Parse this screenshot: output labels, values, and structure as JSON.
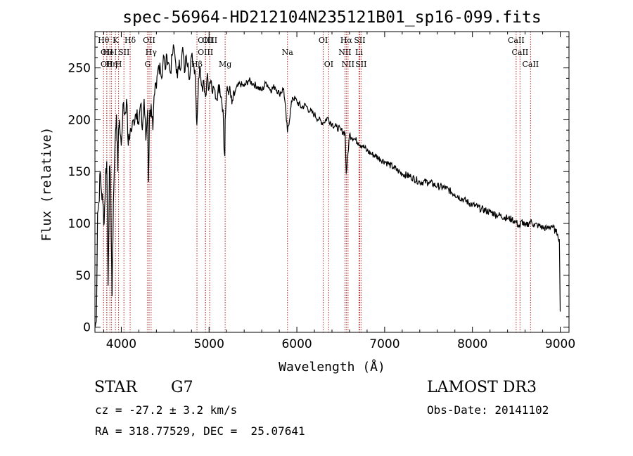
{
  "chart_data": {
    "type": "line",
    "title": "spec-56964-HD212104N235121B01_sp16-099.fits",
    "xlabel": "Wavelength (Å)",
    "ylabel": "Flux (relative)",
    "xlim": [
      3700,
      9100
    ],
    "ylim": [
      -5,
      285
    ],
    "xticks": [
      4000,
      5000,
      6000,
      7000,
      8000,
      9000
    ],
    "yticks": [
      0,
      50,
      100,
      150,
      200,
      250
    ],
    "series": [
      {
        "name": "spectrum",
        "x": [
          3700,
          3715,
          3730,
          3745,
          3760,
          3775,
          3790,
          3805,
          3820,
          3835,
          3850,
          3865,
          3880,
          3895,
          3910,
          3925,
          3935,
          3945,
          3960,
          3968,
          3980,
          4000,
          4020,
          4040,
          4060,
          4080,
          4101,
          4120,
          4140,
          4160,
          4180,
          4200,
          4220,
          4240,
          4260,
          4280,
          4300,
          4310,
          4320,
          4340,
          4360,
          4380,
          4400,
          4420,
          4440,
          4460,
          4480,
          4500,
          4520,
          4540,
          4560,
          4580,
          4600,
          4620,
          4640,
          4660,
          4680,
          4700,
          4720,
          4740,
          4760,
          4780,
          4800,
          4820,
          4840,
          4861,
          4880,
          4900,
          4920,
          4940,
          4960,
          4980,
          5000,
          5020,
          5040,
          5060,
          5080,
          5100,
          5120,
          5140,
          5160,
          5170,
          5180,
          5183,
          5200,
          5230,
          5260,
          5300,
          5350,
          5400,
          5450,
          5500,
          5550,
          5600,
          5650,
          5700,
          5750,
          5800,
          5850,
          5893,
          5950,
          6000,
          6050,
          6100,
          6150,
          6200,
          6250,
          6300,
          6350,
          6400,
          6450,
          6500,
          6550,
          6563,
          6600,
          6650,
          6700,
          6750,
          6800,
          6850,
          6900,
          6950,
          7000,
          7050,
          7100,
          7150,
          7200,
          7300,
          7400,
          7500,
          7600,
          7700,
          7800,
          7900,
          8000,
          8100,
          8200,
          8300,
          8400,
          8450,
          8500,
          8542,
          8560,
          8600,
          8662,
          8700,
          8750,
          8800,
          8850,
          8900,
          8950,
          8970,
          8990,
          9000
        ],
        "values": [
          0,
          5,
          110,
          120,
          150,
          130,
          120,
          100,
          145,
          160,
          40,
          155,
          130,
          30,
          120,
          165,
          190,
          205,
          150,
          190,
          200,
          175,
          215,
          205,
          220,
          175,
          190,
          190,
          200,
          205,
          210,
          195,
          215,
          190,
          220,
          180,
          210,
          140,
          200,
          215,
          190,
          225,
          230,
          250,
          255,
          240,
          262,
          248,
          262,
          255,
          245,
          262,
          270,
          255,
          240,
          258,
          250,
          270,
          245,
          262,
          255,
          240,
          262,
          255,
          248,
          195,
          240,
          250,
          232,
          238,
          222,
          245,
          230,
          238,
          225,
          230,
          220,
          226,
          234,
          222,
          210,
          172,
          165,
          200,
          226,
          230,
          215,
          228,
          235,
          232,
          238,
          235,
          232,
          228,
          236,
          229,
          232,
          225,
          230,
          188,
          222,
          218,
          212,
          214,
          208,
          205,
          200,
          197,
          202,
          196,
          193,
          190,
          187,
          148,
          186,
          182,
          178,
          175,
          170,
          167,
          165,
          162,
          160,
          157,
          154,
          151,
          148,
          145,
          140,
          140,
          136,
          134,
          128,
          123,
          118,
          114,
          111,
          108,
          105,
          104,
          101,
          96,
          103,
          97,
          102,
          99,
          98,
          96,
          95,
          98,
          92,
          90,
          85,
          15
        ]
      }
    ],
    "line_markers": [
      {
        "wavelength": 3798,
        "label": "Hθ",
        "row": 1
      },
      {
        "wavelength": 3835,
        "label": "OII",
        "row": 2
      },
      {
        "wavelength": 3835,
        "label": "OII",
        "row": 3
      },
      {
        "wavelength": 3870,
        "label": "HeI",
        "row": 2
      },
      {
        "wavelength": 3889,
        "label": "Hη",
        "row": 3
      },
      {
        "wavelength": 3934,
        "label": "K",
        "row": 1
      },
      {
        "wavelength": 3969,
        "label": "H",
        "row": 3
      },
      {
        "wavelength": 4030,
        "label": "SII",
        "row": 2
      },
      {
        "wavelength": 4101,
        "label": "Hδ",
        "row": 1
      },
      {
        "wavelength": 4300,
        "label": "G",
        "row": 3
      },
      {
        "wavelength": 4317,
        "label": "OII",
        "row": 1
      },
      {
        "wavelength": 4340,
        "label": "Hγ",
        "row": 2
      },
      {
        "wavelength": 4862,
        "label": "Hβ",
        "row": 3
      },
      {
        "wavelength": 4959,
        "label": "OIII",
        "row": 1
      },
      {
        "wavelength": 4959,
        "label": "OIII",
        "row": 2
      },
      {
        "wavelength": 5007,
        "label": "OIII",
        "row": 1
      },
      {
        "wavelength": 5183,
        "label": "Mg",
        "row": 3
      },
      {
        "wavelength": 5893,
        "label": "Na",
        "row": 2
      },
      {
        "wavelength": 6300,
        "label": "OI",
        "row": 1
      },
      {
        "wavelength": 6363,
        "label": "OI",
        "row": 3
      },
      {
        "wavelength": 6548,
        "label": "NII",
        "row": 2
      },
      {
        "wavelength": 6563,
        "label": "Hα",
        "row": 1
      },
      {
        "wavelength": 6583,
        "label": "NII",
        "row": 3
      },
      {
        "wavelength": 6708,
        "label": "Li",
        "row": 2
      },
      {
        "wavelength": 6716,
        "label": "SII",
        "row": 1
      },
      {
        "wavelength": 6731,
        "label": "SII",
        "row": 3
      },
      {
        "wavelength": 8498,
        "label": "CaII",
        "row": 1
      },
      {
        "wavelength": 8542,
        "label": "CaII",
        "row": 2
      },
      {
        "wavelength": 8662,
        "label": "CaII",
        "row": 3
      }
    ],
    "colors": {
      "spectrum": "#000000",
      "markers": "#b22222",
      "axes": "#000000"
    }
  },
  "info": {
    "object_type": "STAR",
    "subclass": "G7",
    "survey": "LAMOST DR3",
    "cz": "cz = -27.2 ± 3.2 km/s",
    "obs_date": "Obs-Date: 20141102",
    "coords": "RA = 318.77529, DEC =  25.07641"
  }
}
